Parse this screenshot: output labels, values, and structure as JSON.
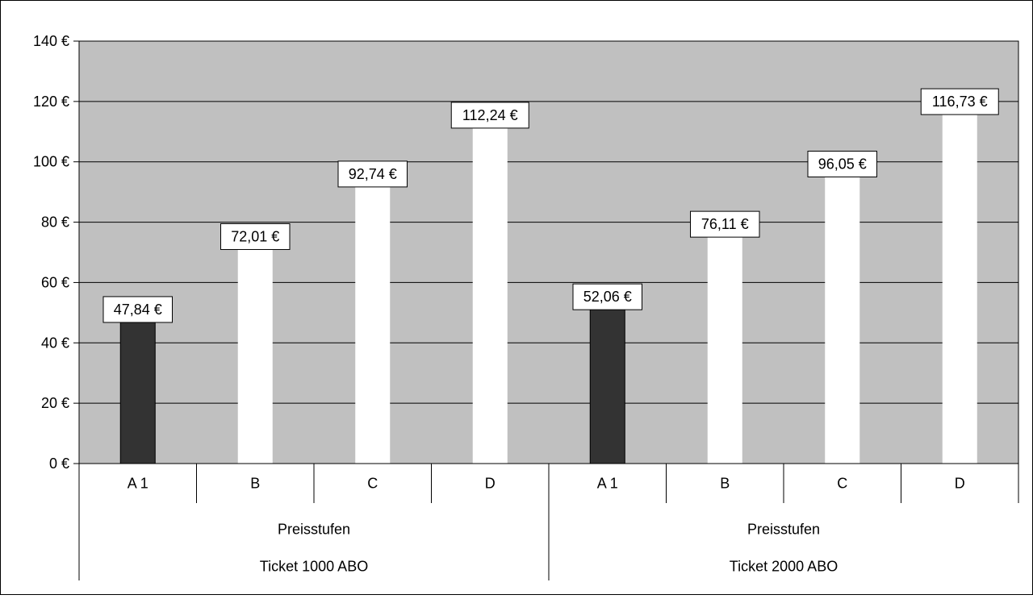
{
  "chart_data": {
    "type": "bar",
    "ylim": [
      0,
      140
    ],
    "y_ticks": [
      0,
      20,
      40,
      60,
      80,
      100,
      120,
      140
    ],
    "y_tick_labels": [
      "0 €",
      "20 €",
      "40 €",
      "60 €",
      "80 €",
      "100 €",
      "120 €",
      "140 €"
    ],
    "grid": true,
    "groups": [
      {
        "name": "Ticket 1000 ABO",
        "subgroup": "Preisstufen",
        "categories": [
          "A 1",
          "B",
          "C",
          "D"
        ],
        "values": [
          47.84,
          72.01,
          92.74,
          112.24
        ],
        "labels": [
          "47,84 €",
          "72,01 €",
          "92,74 €",
          "112,24 €"
        ]
      },
      {
        "name": "Ticket 2000 ABO",
        "subgroup": "Preisstufen",
        "categories": [
          "A 1",
          "B",
          "C",
          "D"
        ],
        "values": [
          52.06,
          76.11,
          96.05,
          116.73
        ],
        "labels": [
          "52,06 €",
          "76,11 €",
          "96,05 €",
          "116,73 €"
        ]
      }
    ],
    "colors": {
      "plot_background": "#c0c0c0",
      "bar_highlight": "#333333",
      "bar_default": "#ffffff",
      "frame": "#000000"
    }
  }
}
